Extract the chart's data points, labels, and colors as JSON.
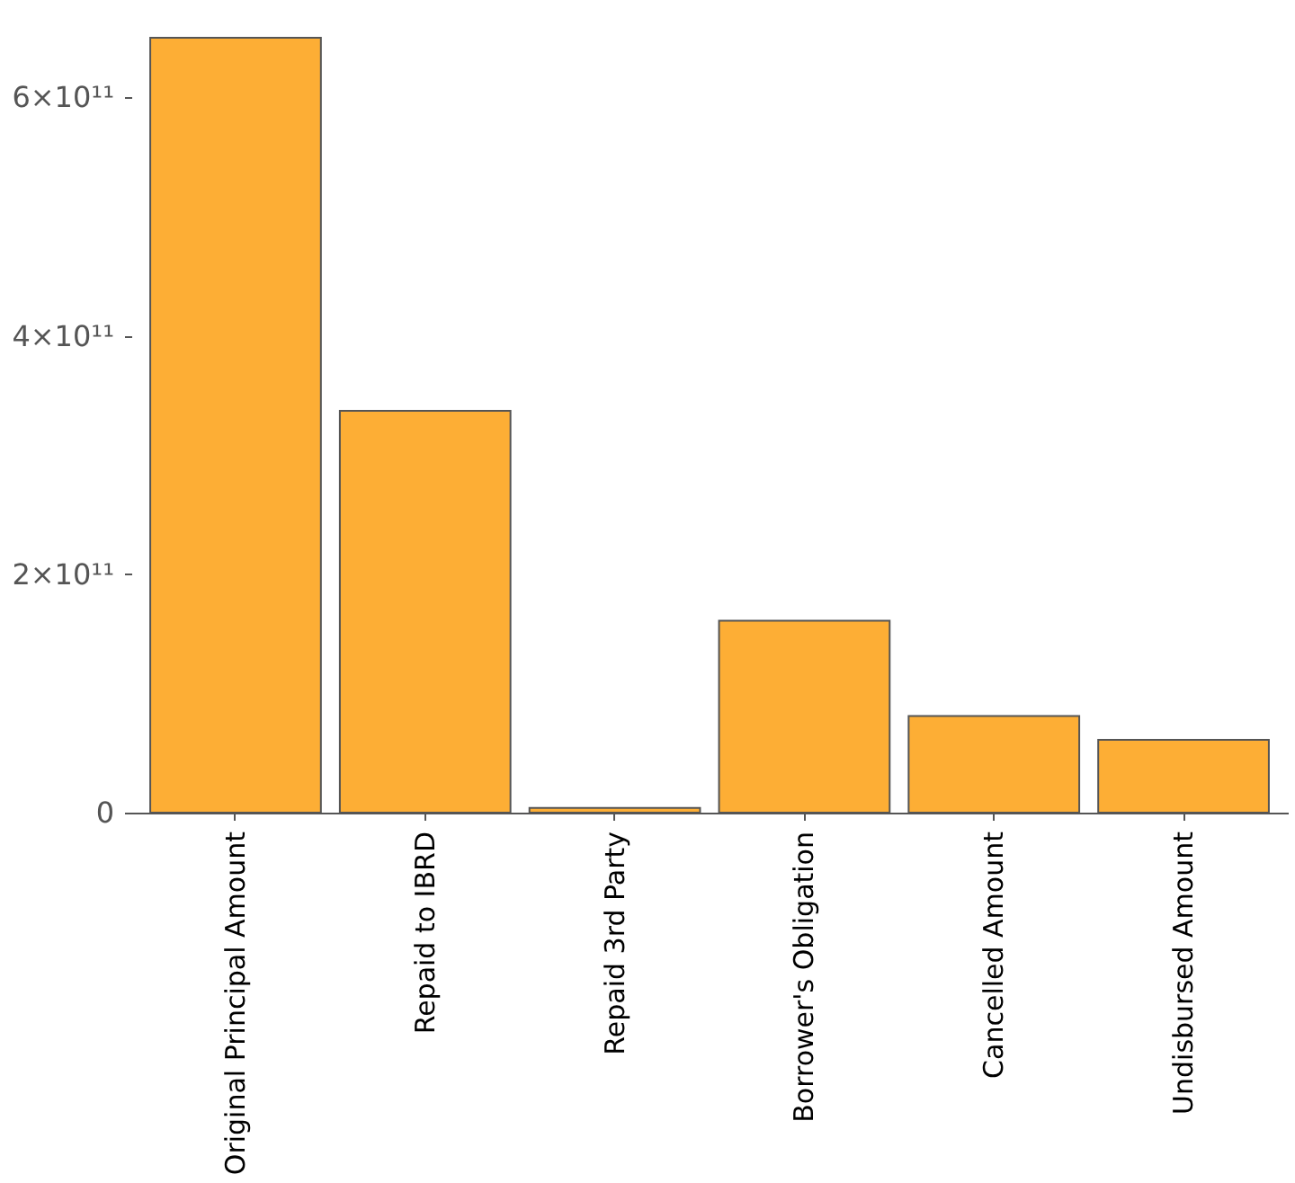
{
  "chart_data": {
    "type": "bar",
    "categories": [
      "Original Principal Amount",
      "Repaid to IBRD",
      "Repaid 3rd Party",
      "Borrower's Obligation",
      "Cancelled Amount",
      "Undisbursed Amount"
    ],
    "values": [
      650000000000.0,
      337000000000.0,
      4000000000.0,
      161000000000.0,
      81000000000.0,
      61000000000.0
    ],
    "color": "#fdae35",
    "ylim": [
      0,
      650000000000.0
    ],
    "yticks": [
      0,
      {
        "value": 200000000000.0,
        "label": "2×10¹¹"
      },
      {
        "value": 400000000000.0,
        "label": "4×10¹¹"
      },
      {
        "value": 600000000000.0,
        "label": "6×10¹¹"
      }
    ],
    "grid": false
  }
}
